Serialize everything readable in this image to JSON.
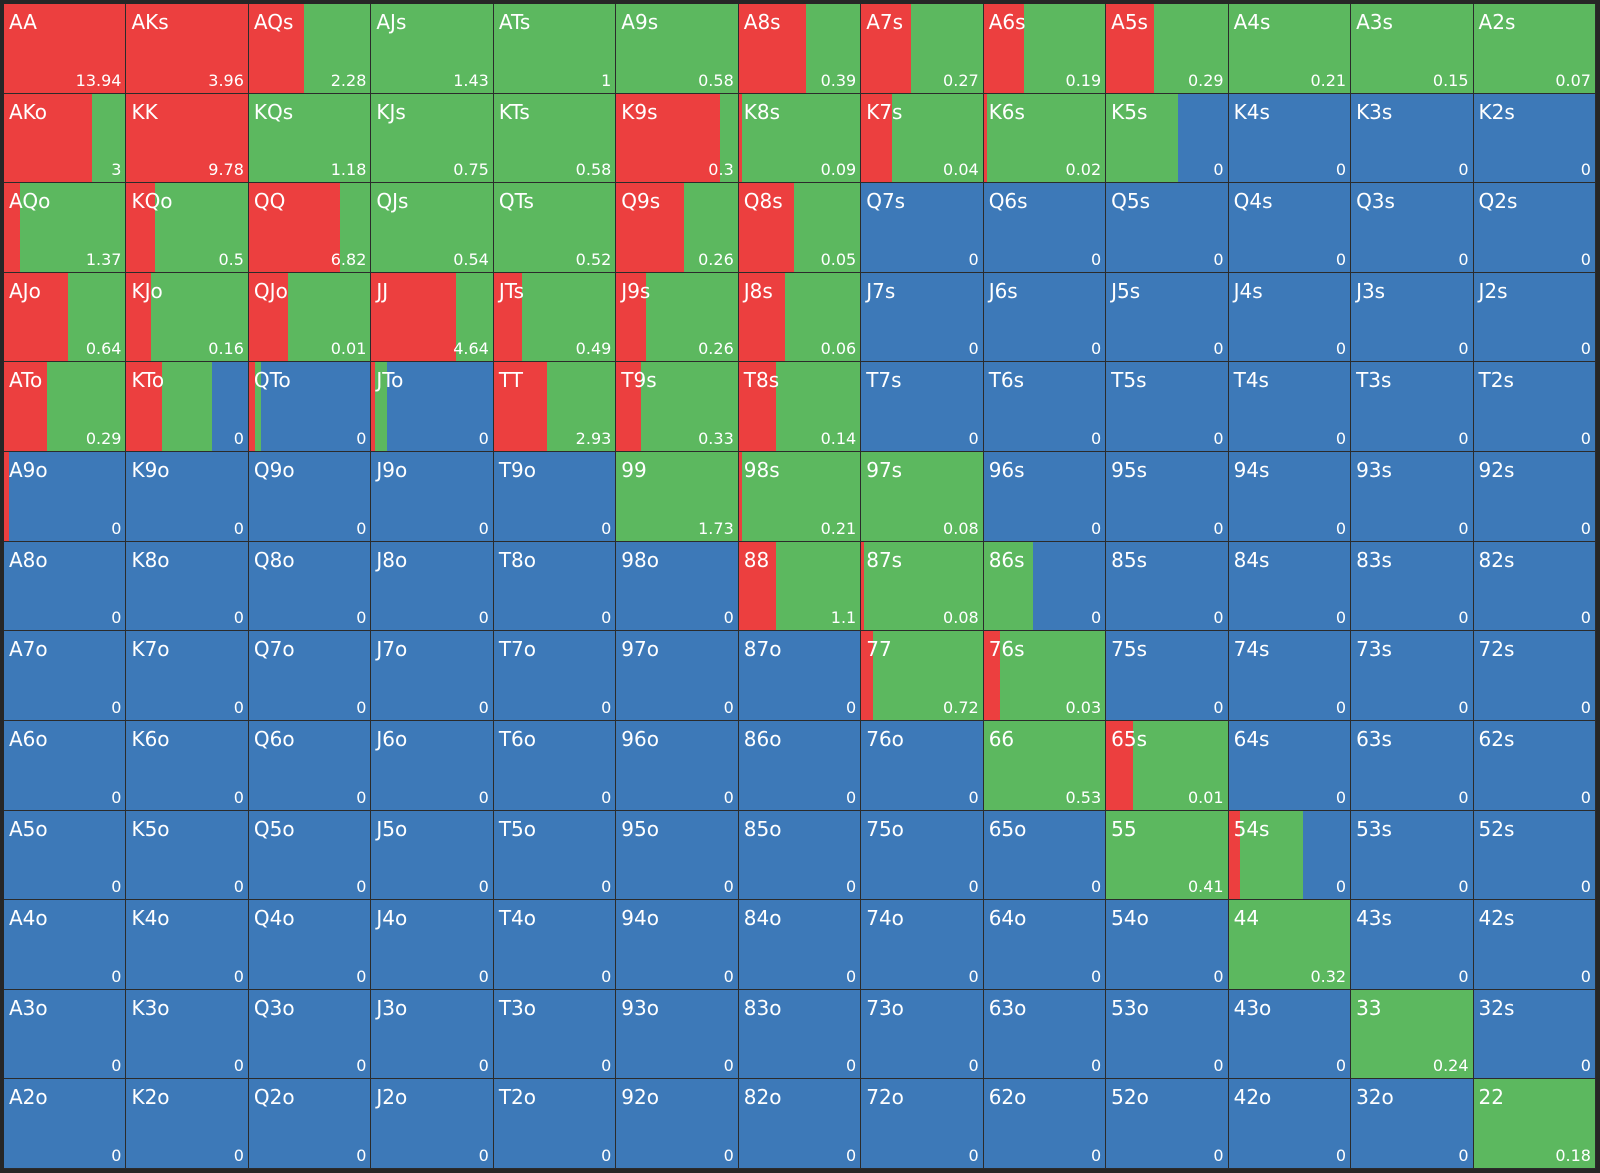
{
  "colors": {
    "red": "#ec3f3f",
    "green": "#5cb85f",
    "blue": "#3d79b8"
  },
  "grid": {
    "rows": [
      [
        {
          "label": "AA",
          "value": 13.94,
          "red": 100,
          "green": 0
        },
        {
          "label": "AKs",
          "value": 3.96,
          "red": 100,
          "green": 0
        },
        {
          "label": "AQs",
          "value": 2.28,
          "red": 45,
          "green": 55
        },
        {
          "label": "AJs",
          "value": 1.43,
          "red": 0,
          "green": 100
        },
        {
          "label": "ATs",
          "value": 1,
          "red": 0,
          "green": 100
        },
        {
          "label": "A9s",
          "value": 0.58,
          "red": 0,
          "green": 100
        },
        {
          "label": "A8s",
          "value": 0.39,
          "red": 55,
          "green": 45
        },
        {
          "label": "A7s",
          "value": 0.27,
          "red": 41,
          "green": 59
        },
        {
          "label": "A6s",
          "value": 0.19,
          "red": 33,
          "green": 67
        },
        {
          "label": "A5s",
          "value": 0.29,
          "red": 39,
          "green": 61
        },
        {
          "label": "A4s",
          "value": 0.21,
          "red": 0,
          "green": 100
        },
        {
          "label": "A3s",
          "value": 0.15,
          "red": 0,
          "green": 100
        },
        {
          "label": "A2s",
          "value": 0.07,
          "red": 0,
          "green": 100
        }
      ],
      [
        {
          "label": "AKo",
          "value": 3,
          "red": 72,
          "green": 28
        },
        {
          "label": "KK",
          "value": 9.78,
          "red": 100,
          "green": 0
        },
        {
          "label": "KQs",
          "value": 1.18,
          "red": 0,
          "green": 100
        },
        {
          "label": "KJs",
          "value": 0.75,
          "red": 0,
          "green": 100
        },
        {
          "label": "KTs",
          "value": 0.58,
          "red": 0,
          "green": 100
        },
        {
          "label": "K9s",
          "value": 0.3,
          "red": 85,
          "green": 15
        },
        {
          "label": "K8s",
          "value": 0.09,
          "red": 3,
          "green": 97
        },
        {
          "label": "K7s",
          "value": 0.04,
          "red": 25,
          "green": 75
        },
        {
          "label": "K6s",
          "value": 0.02,
          "red": 3,
          "green": 97
        },
        {
          "label": "K5s",
          "value": 0,
          "red": 0,
          "green": 59
        },
        {
          "label": "K4s",
          "value": 0,
          "red": 0,
          "green": 0
        },
        {
          "label": "K3s",
          "value": 0,
          "red": 0,
          "green": 0
        },
        {
          "label": "K2s",
          "value": 0,
          "red": 0,
          "green": 0
        }
      ],
      [
        {
          "label": "AQo",
          "value": 1.37,
          "red": 13,
          "green": 87
        },
        {
          "label": "KQo",
          "value": 0.5,
          "red": 23,
          "green": 77
        },
        {
          "label": "QQ",
          "value": 6.82,
          "red": 74,
          "green": 26
        },
        {
          "label": "QJs",
          "value": 0.54,
          "red": 0,
          "green": 100
        },
        {
          "label": "QTs",
          "value": 0.52,
          "red": 0,
          "green": 100
        },
        {
          "label": "Q9s",
          "value": 0.26,
          "red": 55,
          "green": 45
        },
        {
          "label": "Q8s",
          "value": 0.05,
          "red": 45,
          "green": 55
        },
        {
          "label": "Q7s",
          "value": 0,
          "red": 0,
          "green": 0
        },
        {
          "label": "Q6s",
          "value": 0,
          "red": 0,
          "green": 0
        },
        {
          "label": "Q5s",
          "value": 0,
          "red": 0,
          "green": 0
        },
        {
          "label": "Q4s",
          "value": 0,
          "red": 0,
          "green": 0
        },
        {
          "label": "Q3s",
          "value": 0,
          "red": 0,
          "green": 0
        },
        {
          "label": "Q2s",
          "value": 0,
          "red": 0,
          "green": 0
        }
      ],
      [
        {
          "label": "AJo",
          "value": 0.64,
          "red": 52,
          "green": 48
        },
        {
          "label": "KJo",
          "value": 0.16,
          "red": 20,
          "green": 80
        },
        {
          "label": "QJo",
          "value": 0.01,
          "red": 32,
          "green": 68
        },
        {
          "label": "JJ",
          "value": 4.64,
          "red": 69,
          "green": 31
        },
        {
          "label": "JTs",
          "value": 0.49,
          "red": 23,
          "green": 77
        },
        {
          "label": "J9s",
          "value": 0.26,
          "red": 24,
          "green": 76
        },
        {
          "label": "J8s",
          "value": 0.06,
          "red": 38,
          "green": 62
        },
        {
          "label": "J7s",
          "value": 0,
          "red": 0,
          "green": 0
        },
        {
          "label": "J6s",
          "value": 0,
          "red": 0,
          "green": 0
        },
        {
          "label": "J5s",
          "value": 0,
          "red": 0,
          "green": 0
        },
        {
          "label": "J4s",
          "value": 0,
          "red": 0,
          "green": 0
        },
        {
          "label": "J3s",
          "value": 0,
          "red": 0,
          "green": 0
        },
        {
          "label": "J2s",
          "value": 0,
          "red": 0,
          "green": 0
        }
      ],
      [
        {
          "label": "ATo",
          "value": 0.29,
          "red": 35,
          "green": 65
        },
        {
          "label": "KTo",
          "value": 0,
          "red": 29,
          "green": 41
        },
        {
          "label": "QTo",
          "value": 0,
          "red": 5,
          "green": 5
        },
        {
          "label": "JTo",
          "value": 0,
          "red": 3,
          "green": 10
        },
        {
          "label": "TT",
          "value": 2.93,
          "red": 43,
          "green": 57
        },
        {
          "label": "T9s",
          "value": 0.33,
          "red": 20,
          "green": 80
        },
        {
          "label": "T8s",
          "value": 0.14,
          "red": 30,
          "green": 70
        },
        {
          "label": "T7s",
          "value": 0,
          "red": 0,
          "green": 0
        },
        {
          "label": "T6s",
          "value": 0,
          "red": 0,
          "green": 0
        },
        {
          "label": "T5s",
          "value": 0,
          "red": 0,
          "green": 0
        },
        {
          "label": "T4s",
          "value": 0,
          "red": 0,
          "green": 0
        },
        {
          "label": "T3s",
          "value": 0,
          "red": 0,
          "green": 0
        },
        {
          "label": "T2s",
          "value": 0,
          "red": 0,
          "green": 0
        }
      ],
      [
        {
          "label": "A9o",
          "value": 0,
          "red": 4,
          "green": 0
        },
        {
          "label": "K9o",
          "value": 0,
          "red": 0,
          "green": 0
        },
        {
          "label": "Q9o",
          "value": 0,
          "red": 0,
          "green": 0
        },
        {
          "label": "J9o",
          "value": 0,
          "red": 0,
          "green": 0
        },
        {
          "label": "T9o",
          "value": 0,
          "red": 0,
          "green": 0
        },
        {
          "label": "99",
          "value": 1.73,
          "red": 0,
          "green": 100
        },
        {
          "label": "98s",
          "value": 0.21,
          "red": 3,
          "green": 97
        },
        {
          "label": "97s",
          "value": 0.08,
          "red": 0,
          "green": 100
        },
        {
          "label": "96s",
          "value": 0,
          "red": 0,
          "green": 0
        },
        {
          "label": "95s",
          "value": 0,
          "red": 0,
          "green": 0
        },
        {
          "label": "94s",
          "value": 0,
          "red": 0,
          "green": 0
        },
        {
          "label": "93s",
          "value": 0,
          "red": 0,
          "green": 0
        },
        {
          "label": "92s",
          "value": 0,
          "red": 0,
          "green": 0
        }
      ],
      [
        {
          "label": "A8o",
          "value": 0,
          "red": 0,
          "green": 0
        },
        {
          "label": "K8o",
          "value": 0,
          "red": 0,
          "green": 0
        },
        {
          "label": "Q8o",
          "value": 0,
          "red": 0,
          "green": 0
        },
        {
          "label": "J8o",
          "value": 0,
          "red": 0,
          "green": 0
        },
        {
          "label": "T8o",
          "value": 0,
          "red": 0,
          "green": 0
        },
        {
          "label": "98o",
          "value": 0,
          "red": 0,
          "green": 0
        },
        {
          "label": "88",
          "value": 1.1,
          "red": 30,
          "green": 70
        },
        {
          "label": "87s",
          "value": 0.08,
          "red": 2,
          "green": 98
        },
        {
          "label": "86s",
          "value": 0,
          "red": 0,
          "green": 40
        },
        {
          "label": "85s",
          "value": 0,
          "red": 0,
          "green": 0
        },
        {
          "label": "84s",
          "value": 0,
          "red": 0,
          "green": 0
        },
        {
          "label": "83s",
          "value": 0,
          "red": 0,
          "green": 0
        },
        {
          "label": "82s",
          "value": 0,
          "red": 0,
          "green": 0
        }
      ],
      [
        {
          "label": "A7o",
          "value": 0,
          "red": 0,
          "green": 0
        },
        {
          "label": "K7o",
          "value": 0,
          "red": 0,
          "green": 0
        },
        {
          "label": "Q7o",
          "value": 0,
          "red": 0,
          "green": 0
        },
        {
          "label": "J7o",
          "value": 0,
          "red": 0,
          "green": 0
        },
        {
          "label": "T7o",
          "value": 0,
          "red": 0,
          "green": 0
        },
        {
          "label": "97o",
          "value": 0,
          "red": 0,
          "green": 0
        },
        {
          "label": "87o",
          "value": 0,
          "red": 0,
          "green": 0
        },
        {
          "label": "77",
          "value": 0.72,
          "red": 10,
          "green": 90
        },
        {
          "label": "76s",
          "value": 0.03,
          "red": 13,
          "green": 87
        },
        {
          "label": "75s",
          "value": 0,
          "red": 0,
          "green": 0
        },
        {
          "label": "74s",
          "value": 0,
          "red": 0,
          "green": 0
        },
        {
          "label": "73s",
          "value": 0,
          "red": 0,
          "green": 0
        },
        {
          "label": "72s",
          "value": 0,
          "red": 0,
          "green": 0
        }
      ],
      [
        {
          "label": "A6o",
          "value": 0,
          "red": 0,
          "green": 0
        },
        {
          "label": "K6o",
          "value": 0,
          "red": 0,
          "green": 0
        },
        {
          "label": "Q6o",
          "value": 0,
          "red": 0,
          "green": 0
        },
        {
          "label": "J6o",
          "value": 0,
          "red": 0,
          "green": 0
        },
        {
          "label": "T6o",
          "value": 0,
          "red": 0,
          "green": 0
        },
        {
          "label": "96o",
          "value": 0,
          "red": 0,
          "green": 0
        },
        {
          "label": "86o",
          "value": 0,
          "red": 0,
          "green": 0
        },
        {
          "label": "76o",
          "value": 0,
          "red": 0,
          "green": 0
        },
        {
          "label": "66",
          "value": 0.53,
          "red": 0,
          "green": 100
        },
        {
          "label": "65s",
          "value": 0.01,
          "red": 22,
          "green": 78
        },
        {
          "label": "64s",
          "value": 0,
          "red": 0,
          "green": 0
        },
        {
          "label": "63s",
          "value": 0,
          "red": 0,
          "green": 0
        },
        {
          "label": "62s",
          "value": 0,
          "red": 0,
          "green": 0
        }
      ],
      [
        {
          "label": "A5o",
          "value": 0,
          "red": 0,
          "green": 0
        },
        {
          "label": "K5o",
          "value": 0,
          "red": 0,
          "green": 0
        },
        {
          "label": "Q5o",
          "value": 0,
          "red": 0,
          "green": 0
        },
        {
          "label": "J5o",
          "value": 0,
          "red": 0,
          "green": 0
        },
        {
          "label": "T5o",
          "value": 0,
          "red": 0,
          "green": 0
        },
        {
          "label": "95o",
          "value": 0,
          "red": 0,
          "green": 0
        },
        {
          "label": "85o",
          "value": 0,
          "red": 0,
          "green": 0
        },
        {
          "label": "75o",
          "value": 0,
          "red": 0,
          "green": 0
        },
        {
          "label": "65o",
          "value": 0,
          "red": 0,
          "green": 0
        },
        {
          "label": "55",
          "value": 0.41,
          "red": 0,
          "green": 100
        },
        {
          "label": "54s",
          "value": 0,
          "red": 9,
          "green": 52
        },
        {
          "label": "53s",
          "value": 0,
          "red": 0,
          "green": 0
        },
        {
          "label": "52s",
          "value": 0,
          "red": 0,
          "green": 0
        }
      ],
      [
        {
          "label": "A4o",
          "value": 0,
          "red": 0,
          "green": 0
        },
        {
          "label": "K4o",
          "value": 0,
          "red": 0,
          "green": 0
        },
        {
          "label": "Q4o",
          "value": 0,
          "red": 0,
          "green": 0
        },
        {
          "label": "J4o",
          "value": 0,
          "red": 0,
          "green": 0
        },
        {
          "label": "T4o",
          "value": 0,
          "red": 0,
          "green": 0
        },
        {
          "label": "94o",
          "value": 0,
          "red": 0,
          "green": 0
        },
        {
          "label": "84o",
          "value": 0,
          "red": 0,
          "green": 0
        },
        {
          "label": "74o",
          "value": 0,
          "red": 0,
          "green": 0
        },
        {
          "label": "64o",
          "value": 0,
          "red": 0,
          "green": 0
        },
        {
          "label": "54o",
          "value": 0,
          "red": 0,
          "green": 0
        },
        {
          "label": "44",
          "value": 0.32,
          "red": 0,
          "green": 100
        },
        {
          "label": "43s",
          "value": 0,
          "red": 0,
          "green": 0
        },
        {
          "label": "42s",
          "value": 0,
          "red": 0,
          "green": 0
        }
      ],
      [
        {
          "label": "A3o",
          "value": 0,
          "red": 0,
          "green": 0
        },
        {
          "label": "K3o",
          "value": 0,
          "red": 0,
          "green": 0
        },
        {
          "label": "Q3o",
          "value": 0,
          "red": 0,
          "green": 0
        },
        {
          "label": "J3o",
          "value": 0,
          "red": 0,
          "green": 0
        },
        {
          "label": "T3o",
          "value": 0,
          "red": 0,
          "green": 0
        },
        {
          "label": "93o",
          "value": 0,
          "red": 0,
          "green": 0
        },
        {
          "label": "83o",
          "value": 0,
          "red": 0,
          "green": 0
        },
        {
          "label": "73o",
          "value": 0,
          "red": 0,
          "green": 0
        },
        {
          "label": "63o",
          "value": 0,
          "red": 0,
          "green": 0
        },
        {
          "label": "53o",
          "value": 0,
          "red": 0,
          "green": 0
        },
        {
          "label": "43o",
          "value": 0,
          "red": 0,
          "green": 0
        },
        {
          "label": "33",
          "value": 0.24,
          "red": 0,
          "green": 100
        },
        {
          "label": "32s",
          "value": 0,
          "red": 0,
          "green": 0
        }
      ],
      [
        {
          "label": "A2o",
          "value": 0,
          "red": 0,
          "green": 0
        },
        {
          "label": "K2o",
          "value": 0,
          "red": 0,
          "green": 0
        },
        {
          "label": "Q2o",
          "value": 0,
          "red": 0,
          "green": 0
        },
        {
          "label": "J2o",
          "value": 0,
          "red": 0,
          "green": 0
        },
        {
          "label": "T2o",
          "value": 0,
          "red": 0,
          "green": 0
        },
        {
          "label": "92o",
          "value": 0,
          "red": 0,
          "green": 0
        },
        {
          "label": "82o",
          "value": 0,
          "red": 0,
          "green": 0
        },
        {
          "label": "72o",
          "value": 0,
          "red": 0,
          "green": 0
        },
        {
          "label": "62o",
          "value": 0,
          "red": 0,
          "green": 0
        },
        {
          "label": "52o",
          "value": 0,
          "red": 0,
          "green": 0
        },
        {
          "label": "42o",
          "value": 0,
          "red": 0,
          "green": 0
        },
        {
          "label": "32o",
          "value": 0,
          "red": 0,
          "green": 0
        },
        {
          "label": "22",
          "value": 0.18,
          "red": 0,
          "green": 100
        }
      ]
    ]
  }
}
